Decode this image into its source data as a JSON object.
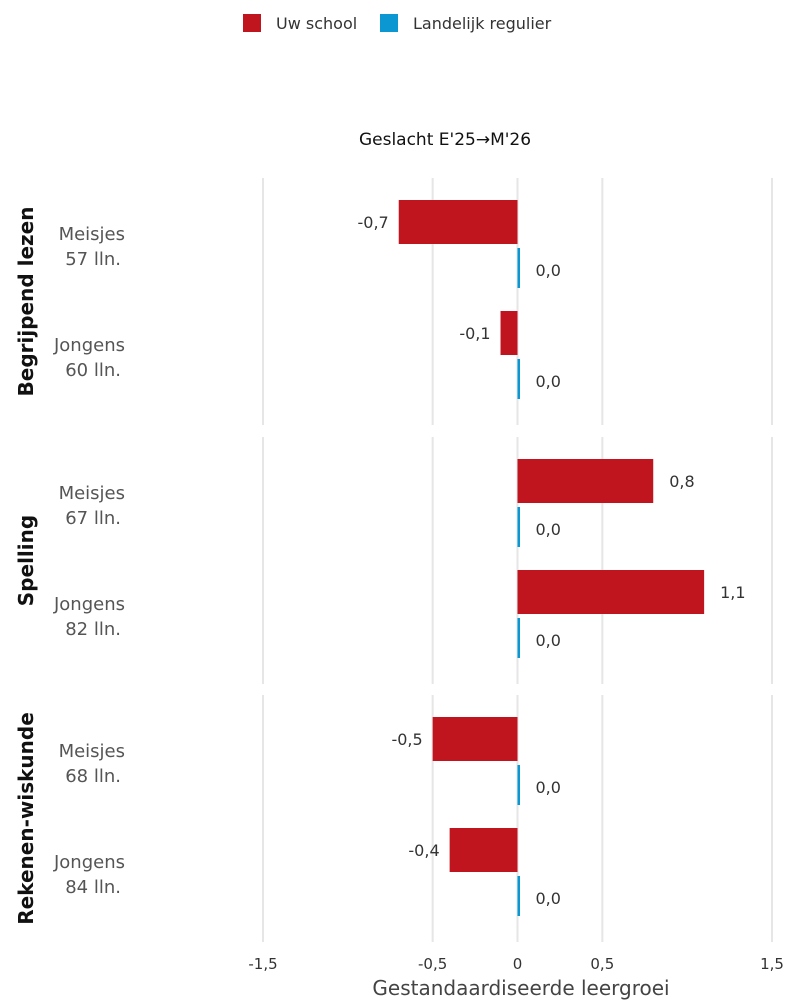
{
  "chart_data": {
    "type": "bar",
    "orientation": "horizontal",
    "title": "Geslacht E'25→M'26",
    "xlabel": "Gestandaardiseerde leergroei",
    "xlim": [
      -1.5,
      1.5
    ],
    "xticks": [
      {
        "value": -1.5,
        "label": "-1,5"
      },
      {
        "value": -0.5,
        "label": "-0,5"
      },
      {
        "value": 0,
        "label": "0"
      },
      {
        "value": 0.5,
        "label": "0,5"
      },
      {
        "value": 1.5,
        "label": "1,5"
      }
    ],
    "grid": true,
    "legend_position": "top",
    "series": [
      {
        "name": "Uw school",
        "color": "#C0141F"
      },
      {
        "name": "Landelijk regulier",
        "color": "#0B97D1"
      }
    ],
    "panels": [
      {
        "name": "Begrijpend lezen",
        "groups": [
          {
            "label": "Meisjes",
            "count": "57 lln.",
            "values": [
              -0.7,
              0.0
            ],
            "value_labels": [
              "-0,7",
              "0,0"
            ]
          },
          {
            "label": "Jongens",
            "count": "60 lln.",
            "values": [
              -0.1,
              0.0
            ],
            "value_labels": [
              "-0,1",
              "0,0"
            ]
          }
        ]
      },
      {
        "name": "Spelling",
        "groups": [
          {
            "label": "Meisjes",
            "count": "67 lln.",
            "values": [
              0.8,
              0.0
            ],
            "value_labels": [
              "0,8",
              "0,0"
            ]
          },
          {
            "label": "Jongens",
            "count": "82 lln.",
            "values": [
              1.1,
              0.0
            ],
            "value_labels": [
              "1,1",
              "0,0"
            ]
          }
        ]
      },
      {
        "name": "Rekenen-wiskunde",
        "groups": [
          {
            "label": "Meisjes",
            "count": "68 lln.",
            "values": [
              -0.5,
              0.0
            ],
            "value_labels": [
              "-0,5",
              "0,0"
            ]
          },
          {
            "label": "Jongens",
            "count": "84 lln.",
            "values": [
              -0.4,
              0.0
            ],
            "value_labels": [
              "-0,4",
              "0,0"
            ]
          }
        ]
      }
    ]
  }
}
